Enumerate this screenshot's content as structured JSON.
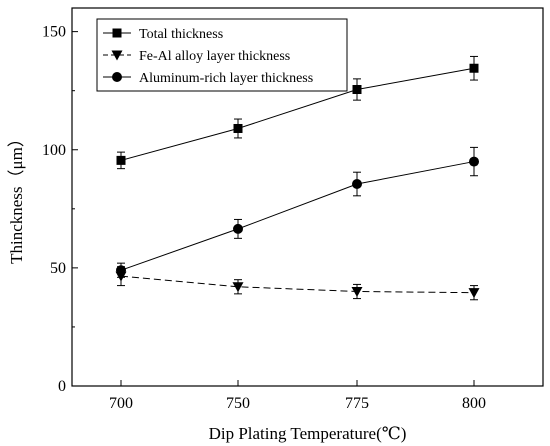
{
  "chart_data": {
    "type": "line",
    "title": "",
    "xlabel": "Dip Plating Temperature(℃)",
    "ylabel": "Thinckness（μm）",
    "categories": [
      "700",
      "750",
      "775",
      "800"
    ],
    "ylim": [
      0,
      160
    ],
    "yticks": [
      0,
      50,
      100,
      150
    ],
    "grid": false,
    "legend_position": "top-left",
    "series": [
      {
        "name": "Total thickness",
        "marker": "square",
        "line_style": "solid",
        "values": [
          95.5,
          109,
          125.5,
          134.5
        ],
        "errors": [
          3.5,
          4,
          4.5,
          5
        ]
      },
      {
        "name": "Fe-Al alloy layer thickness",
        "marker": "triangle-down",
        "line_style": "dashed",
        "values": [
          46.5,
          42,
          40,
          39.5
        ],
        "errors": [
          4,
          3,
          3,
          3
        ]
      },
      {
        "name": "Aluminum-rich layer thickness",
        "marker": "circle",
        "line_style": "solid",
        "values": [
          49,
          66.5,
          85.5,
          95
        ],
        "errors": [
          3,
          4,
          5,
          6
        ]
      }
    ],
    "colors": {
      "line": "#000000",
      "axis": "#000000",
      "background": "#ffffff"
    }
  }
}
